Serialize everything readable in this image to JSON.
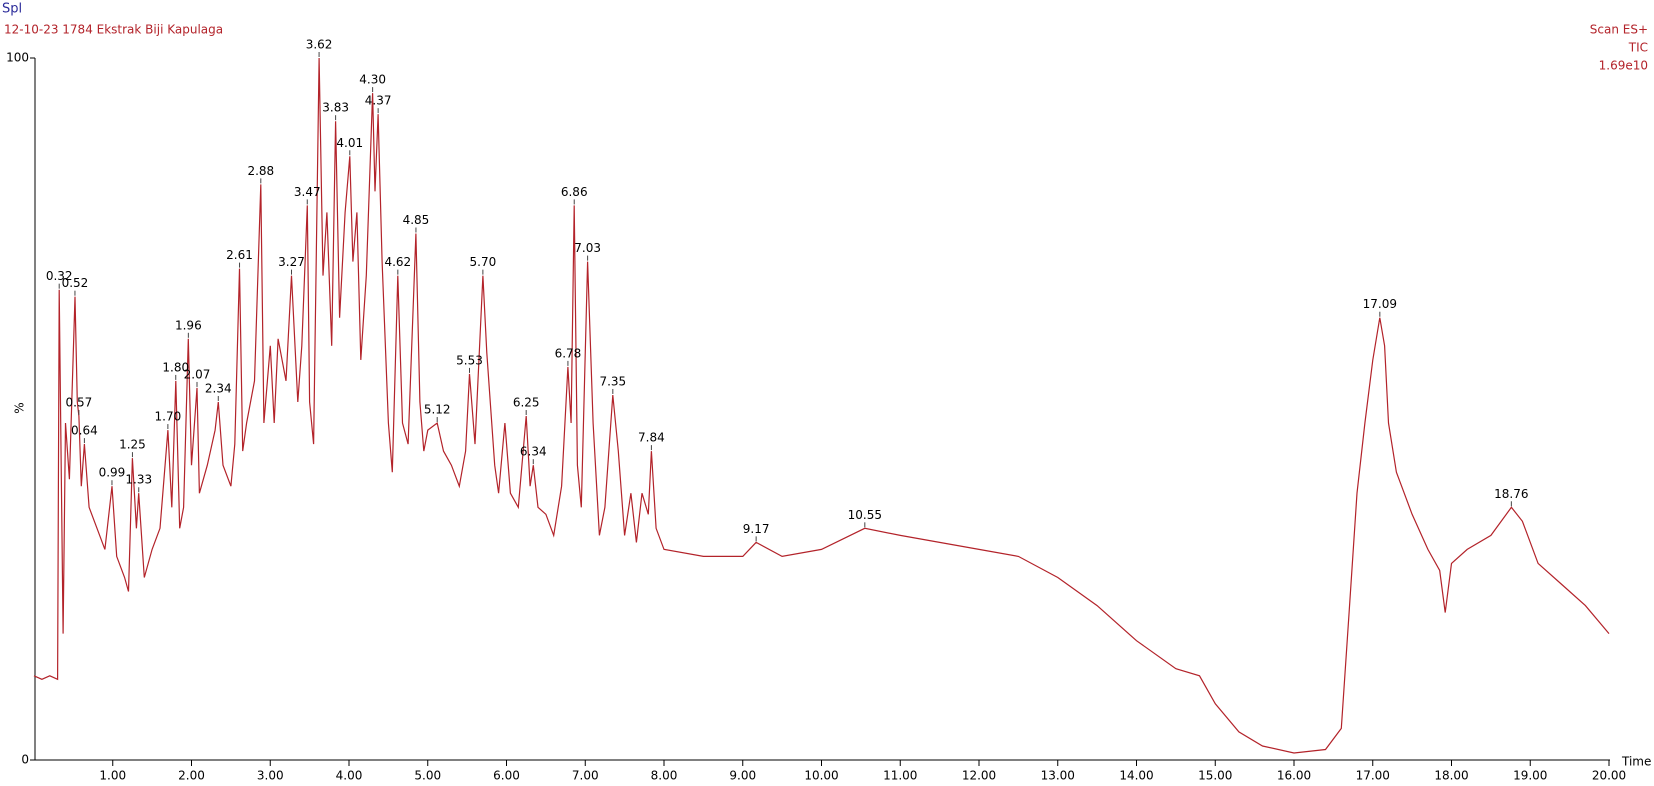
{
  "chart_data": {
    "type": "line",
    "corner_label": "Spl",
    "title": "12-10-23 1784 Ekstrak Biji Kapulaga",
    "scan_info": [
      "Scan ES+",
      "TIC",
      "1.69e10"
    ],
    "ylabel": "%",
    "xlabel": "Time",
    "xlim": [
      0,
      20
    ],
    "ylim": [
      0,
      100
    ],
    "yticks": [
      0,
      100
    ],
    "xticks": [
      {
        "value": 1,
        "label": "1.00"
      },
      {
        "value": 2,
        "label": "2.00"
      },
      {
        "value": 3,
        "label": "3.00"
      },
      {
        "value": 4,
        "label": "4.00"
      },
      {
        "value": 5,
        "label": "5.00"
      },
      {
        "value": 6,
        "label": "6.00"
      },
      {
        "value": 7,
        "label": "7.00"
      },
      {
        "value": 8,
        "label": "8.00"
      },
      {
        "value": 9,
        "label": "9.00"
      },
      {
        "value": 10,
        "label": "10.00"
      },
      {
        "value": 11,
        "label": "11.00"
      },
      {
        "value": 12,
        "label": "12.00"
      },
      {
        "value": 13,
        "label": "13.00"
      },
      {
        "value": 14,
        "label": "14.00"
      },
      {
        "value": 15,
        "label": "15.00"
      },
      {
        "value": 16,
        "label": "16.00"
      },
      {
        "value": 17,
        "label": "17.00"
      },
      {
        "value": 18,
        "label": "18.00"
      },
      {
        "value": 19,
        "label": "19.00"
      },
      {
        "value": 20,
        "label": "20.00"
      }
    ],
    "x": [
      0,
      0.1,
      0.2,
      0.3,
      0.32,
      0.37,
      0.4,
      0.45,
      0.52,
      0.55,
      0.57,
      0.6,
      0.64,
      0.7,
      0.8,
      0.9,
      0.99,
      1.05,
      1.15,
      1.2,
      1.25,
      1.3,
      1.33,
      1.4,
      1.5,
      1.6,
      1.7,
      1.75,
      1.8,
      1.85,
      1.9,
      1.96,
      2.0,
      2.07,
      2.1,
      2.2,
      2.3,
      2.34,
      2.4,
      2.5,
      2.55,
      2.61,
      2.65,
      2.7,
      2.8,
      2.88,
      2.92,
      3.0,
      3.05,
      3.1,
      3.2,
      3.27,
      3.35,
      3.4,
      3.47,
      3.5,
      3.55,
      3.62,
      3.67,
      3.72,
      3.78,
      3.83,
      3.88,
      3.95,
      4.01,
      4.05,
      4.1,
      4.15,
      4.22,
      4.3,
      4.33,
      4.37,
      4.42,
      4.5,
      4.55,
      4.62,
      4.68,
      4.75,
      4.85,
      4.9,
      4.95,
      5.0,
      5.12,
      5.2,
      5.3,
      5.4,
      5.48,
      5.53,
      5.6,
      5.7,
      5.75,
      5.85,
      5.9,
      5.98,
      6.05,
      6.15,
      6.25,
      6.3,
      6.34,
      6.4,
      6.5,
      6.6,
      6.7,
      6.78,
      6.82,
      6.86,
      6.9,
      6.95,
      7.03,
      7.1,
      7.18,
      7.25,
      7.35,
      7.42,
      7.5,
      7.58,
      7.65,
      7.72,
      7.8,
      7.84,
      7.9,
      8.0,
      8.5,
      9.0,
      9.17,
      9.5,
      10.0,
      10.55,
      11.0,
      11.5,
      12.0,
      12.5,
      13.0,
      13.5,
      14.0,
      14.5,
      14.8,
      15.0,
      15.3,
      15.6,
      16.0,
      16.4,
      16.6,
      16.7,
      16.8,
      16.9,
      17.0,
      17.09,
      17.15,
      17.2,
      17.3,
      17.5,
      17.7,
      17.85,
      17.92,
      18.0,
      18.2,
      18.5,
      18.76,
      18.9,
      19.1,
      19.4,
      19.7,
      20.0
    ],
    "series": [
      {
        "color": "#b3232a",
        "values": [
          12,
          11.5,
          12,
          11.5,
          67,
          18,
          48,
          40,
          66,
          51,
          49,
          39,
          45,
          36,
          33,
          30,
          39,
          29,
          26,
          24,
          43,
          33,
          38,
          26,
          30,
          33,
          47,
          36,
          54,
          33,
          36,
          60,
          42,
          53,
          38,
          42,
          47,
          51,
          42,
          39,
          45,
          70,
          44,
          48,
          54,
          82,
          48,
          59,
          48,
          60,
          54,
          69,
          51,
          59,
          79,
          51,
          45,
          100,
          69,
          78,
          59,
          91,
          63,
          78,
          86,
          71,
          78,
          57,
          69,
          95,
          81,
          92,
          71,
          48,
          41,
          69,
          48,
          45,
          75,
          51,
          44,
          47,
          48,
          44,
          42,
          39,
          44,
          55,
          45,
          69,
          58,
          42,
          38,
          48,
          38,
          36,
          49,
          39,
          42,
          36,
          35,
          32,
          39,
          56,
          48,
          79,
          42,
          36,
          71,
          48,
          32,
          36,
          52,
          44,
          32,
          38,
          31,
          38,
          35,
          44,
          33,
          30,
          29,
          29,
          31,
          29,
          30,
          33,
          32,
          31,
          30,
          29,
          26,
          22,
          17,
          13,
          12,
          8,
          4,
          2,
          1,
          1.5,
          4.5,
          21,
          38,
          48,
          57,
          63,
          59,
          48,
          41,
          35,
          30,
          27,
          21,
          28,
          30,
          32,
          36,
          34,
          28,
          25,
          22,
          18
        ]
      }
    ],
    "peaks": [
      {
        "x": 0.32,
        "label": "0.32"
      },
      {
        "x": 0.52,
        "label": "0.52"
      },
      {
        "x": 0.57,
        "label": "0.57"
      },
      {
        "x": 0.64,
        "label": "0.64"
      },
      {
        "x": 0.99,
        "label": "0.99"
      },
      {
        "x": 1.25,
        "label": "1.25"
      },
      {
        "x": 1.33,
        "label": "1.33"
      },
      {
        "x": 1.7,
        "label": "1.70"
      },
      {
        "x": 1.8,
        "label": "1.80"
      },
      {
        "x": 1.96,
        "label": "1.96"
      },
      {
        "x": 2.07,
        "label": "2.07"
      },
      {
        "x": 2.34,
        "label": "2.34"
      },
      {
        "x": 2.61,
        "label": "2.61"
      },
      {
        "x": 2.88,
        "label": "2.88"
      },
      {
        "x": 3.27,
        "label": "3.27"
      },
      {
        "x": 3.47,
        "label": "3.47"
      },
      {
        "x": 3.62,
        "label": "3.62"
      },
      {
        "x": 3.83,
        "label": "3.83"
      },
      {
        "x": 4.01,
        "label": "4.01"
      },
      {
        "x": 4.3,
        "label": "4.30"
      },
      {
        "x": 4.37,
        "label": "4.37"
      },
      {
        "x": 4.62,
        "label": "4.62"
      },
      {
        "x": 4.85,
        "label": "4.85"
      },
      {
        "x": 5.12,
        "label": "5.12"
      },
      {
        "x": 5.53,
        "label": "5.53"
      },
      {
        "x": 5.7,
        "label": "5.70"
      },
      {
        "x": 6.25,
        "label": "6.25"
      },
      {
        "x": 6.34,
        "label": "6.34"
      },
      {
        "x": 6.78,
        "label": "6.78"
      },
      {
        "x": 6.86,
        "label": "6.86"
      },
      {
        "x": 7.03,
        "label": "7.03"
      },
      {
        "x": 7.35,
        "label": "7.35"
      },
      {
        "x": 7.84,
        "label": "7.84"
      },
      {
        "x": 9.17,
        "label": "9.17"
      },
      {
        "x": 10.55,
        "label": "10.55"
      },
      {
        "x": 17.09,
        "label": "17.09"
      },
      {
        "x": 18.76,
        "label": "18.76"
      }
    ]
  }
}
